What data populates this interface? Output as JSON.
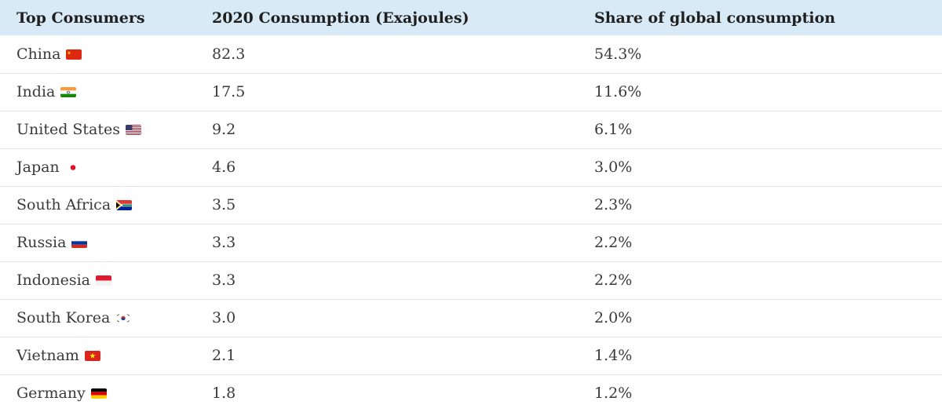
{
  "table": {
    "headers": [
      "Top Consumers",
      "2020 Consumption (Exajoules)",
      "Share of global consumption"
    ],
    "rows": [
      {
        "country": "China",
        "flag_icon": "china-flag-icon",
        "consumption": "82.3",
        "share": "54.3%"
      },
      {
        "country": "India",
        "flag_icon": "india-flag-icon",
        "consumption": "17.5",
        "share": "11.6%"
      },
      {
        "country": "United States",
        "flag_icon": "united-states-flag-icon",
        "consumption": "9.2",
        "share": "6.1%"
      },
      {
        "country": "Japan",
        "flag_icon": "japan-flag-icon",
        "consumption": "4.6",
        "share": "3.0%"
      },
      {
        "country": "South Africa",
        "flag_icon": "south-africa-flag-icon",
        "consumption": "3.5",
        "share": "2.3%"
      },
      {
        "country": "Russia",
        "flag_icon": "russia-flag-icon",
        "consumption": "3.3",
        "share": "2.2%"
      },
      {
        "country": "Indonesia",
        "flag_icon": "indonesia-flag-icon",
        "consumption": "3.3",
        "share": "2.2%"
      },
      {
        "country": "South Korea",
        "flag_icon": "south-korea-flag-icon",
        "consumption": "3.0",
        "share": "2.0%"
      },
      {
        "country": "Vietnam",
        "flag_icon": "vietnam-flag-icon",
        "consumption": "2.1",
        "share": "1.4%"
      },
      {
        "country": "Germany",
        "flag_icon": "germany-flag-icon",
        "consumption": "1.8",
        "share": "1.2%"
      }
    ]
  },
  "colors": {
    "header_background": "#d8eaf6",
    "row_divider": "#e2e2e2",
    "text": "#3a3a3a"
  }
}
